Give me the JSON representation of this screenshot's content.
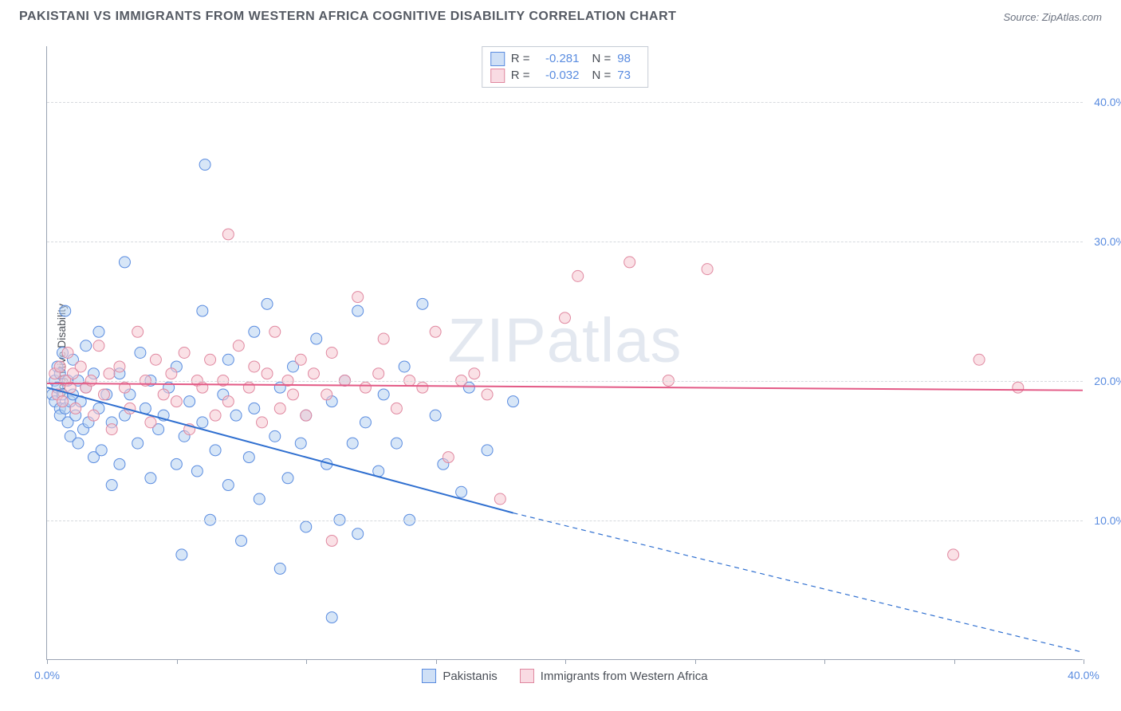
{
  "title": "PAKISTANI VS IMMIGRANTS FROM WESTERN AFRICA COGNITIVE DISABILITY CORRELATION CHART",
  "source_label": "Source: ",
  "source_name": "ZipAtlas.com",
  "watermark": "ZIPatlas",
  "ylabel": "Cognitive Disability",
  "chart": {
    "type": "scatter",
    "xlim": [
      0,
      40
    ],
    "ylim": [
      0,
      44
    ],
    "x_ticks_major": [
      0,
      40
    ],
    "x_ticks_minor": [
      5,
      10,
      15,
      20,
      25,
      30,
      35
    ],
    "y_ticks": [
      10,
      20,
      30,
      40
    ],
    "grid_color": "#d6d9de",
    "axis_color": "#9aa3b2",
    "tick_label_color": "#5a8ce0",
    "series": [
      {
        "name": "Pakistanis",
        "marker_fill": "#b7d2f1",
        "marker_stroke": "#5a8ce0",
        "marker_fill_opacity": 0.55,
        "line_color": "#2f6fd0",
        "line_width": 2,
        "r_value": "-0.281",
        "n_value": "98",
        "swatch_fill": "#cfe0f6",
        "swatch_border": "#5a8ce0",
        "trend": {
          "x1": 0,
          "y1": 19.5,
          "x2_solid": 18,
          "y2_solid": 10.5,
          "x2_dash": 40,
          "y2_dash": 0.5
        },
        "points": [
          [
            0.2,
            19
          ],
          [
            0.3,
            20
          ],
          [
            0.3,
            18.5
          ],
          [
            0.4,
            21
          ],
          [
            0.4,
            19.5
          ],
          [
            0.5,
            18
          ],
          [
            0.5,
            20.5
          ],
          [
            0.5,
            17.5
          ],
          [
            0.6,
            19
          ],
          [
            0.6,
            22
          ],
          [
            0.7,
            25
          ],
          [
            0.7,
            18
          ],
          [
            0.8,
            17
          ],
          [
            0.8,
            20
          ],
          [
            0.9,
            18.5
          ],
          [
            0.9,
            16
          ],
          [
            1.0,
            19
          ],
          [
            1.0,
            21.5
          ],
          [
            1.1,
            17.5
          ],
          [
            1.2,
            15.5
          ],
          [
            1.2,
            20
          ],
          [
            1.3,
            18.5
          ],
          [
            1.4,
            16.5
          ],
          [
            1.5,
            19.5
          ],
          [
            1.5,
            22.5
          ],
          [
            1.6,
            17
          ],
          [
            1.8,
            14.5
          ],
          [
            1.8,
            20.5
          ],
          [
            2.0,
            18
          ],
          [
            2.0,
            23.5
          ],
          [
            2.1,
            15
          ],
          [
            2.3,
            19
          ],
          [
            2.5,
            17
          ],
          [
            2.5,
            12.5
          ],
          [
            2.8,
            20.5
          ],
          [
            2.8,
            14
          ],
          [
            3.0,
            28.5
          ],
          [
            3.0,
            17.5
          ],
          [
            3.2,
            19
          ],
          [
            3.5,
            15.5
          ],
          [
            3.6,
            22
          ],
          [
            3.8,
            18
          ],
          [
            4.0,
            13
          ],
          [
            4.0,
            20
          ],
          [
            4.3,
            16.5
          ],
          [
            4.5,
            17.5
          ],
          [
            4.7,
            19.5
          ],
          [
            5.0,
            14
          ],
          [
            5.0,
            21
          ],
          [
            5.2,
            7.5
          ],
          [
            5.3,
            16
          ],
          [
            5.5,
            18.5
          ],
          [
            5.8,
            13.5
          ],
          [
            6.0,
            25
          ],
          [
            6.0,
            17
          ],
          [
            6.1,
            35.5
          ],
          [
            6.3,
            10
          ],
          [
            6.5,
            15
          ],
          [
            6.8,
            19
          ],
          [
            7.0,
            12.5
          ],
          [
            7.0,
            21.5
          ],
          [
            7.3,
            17.5
          ],
          [
            7.5,
            8.5
          ],
          [
            7.8,
            14.5
          ],
          [
            8.0,
            23.5
          ],
          [
            8.0,
            18
          ],
          [
            8.2,
            11.5
          ],
          [
            8.5,
            25.5
          ],
          [
            8.8,
            16
          ],
          [
            9.0,
            6.5
          ],
          [
            9.0,
            19.5
          ],
          [
            9.3,
            13
          ],
          [
            9.5,
            21
          ],
          [
            9.8,
            15.5
          ],
          [
            10.0,
            17.5
          ],
          [
            10.0,
            9.5
          ],
          [
            10.4,
            23
          ],
          [
            10.8,
            14
          ],
          [
            11.0,
            3
          ],
          [
            11.0,
            18.5
          ],
          [
            11.3,
            10
          ],
          [
            11.5,
            20
          ],
          [
            11.8,
            15.5
          ],
          [
            12.0,
            9
          ],
          [
            12.0,
            25
          ],
          [
            12.3,
            17
          ],
          [
            12.8,
            13.5
          ],
          [
            13.0,
            19
          ],
          [
            13.5,
            15.5
          ],
          [
            13.8,
            21
          ],
          [
            14.0,
            10
          ],
          [
            14.5,
            25.5
          ],
          [
            15.0,
            17.5
          ],
          [
            15.3,
            14
          ],
          [
            16.0,
            12
          ],
          [
            16.3,
            19.5
          ],
          [
            17.0,
            15
          ],
          [
            18.0,
            18.5
          ]
        ]
      },
      {
        "name": "Immigrants from Western Africa",
        "marker_fill": "#f6c8d2",
        "marker_stroke": "#e088a0",
        "marker_fill_opacity": 0.55,
        "line_color": "#e35a86",
        "line_width": 2,
        "r_value": "-0.032",
        "n_value": "73",
        "swatch_fill": "#f9dbe3",
        "swatch_border": "#e088a0",
        "trend": {
          "x1": 0,
          "y1": 19.8,
          "x2_solid": 40,
          "y2_solid": 19.3,
          "x2_dash": 40,
          "y2_dash": 19.3
        },
        "points": [
          [
            0.3,
            20.5
          ],
          [
            0.4,
            19
          ],
          [
            0.5,
            21
          ],
          [
            0.6,
            18.5
          ],
          [
            0.7,
            20
          ],
          [
            0.8,
            22
          ],
          [
            0.9,
            19.5
          ],
          [
            1.0,
            20.5
          ],
          [
            1.1,
            18
          ],
          [
            1.3,
            21
          ],
          [
            1.5,
            19.5
          ],
          [
            1.7,
            20
          ],
          [
            1.8,
            17.5
          ],
          [
            2.0,
            22.5
          ],
          [
            2.2,
            19
          ],
          [
            2.4,
            20.5
          ],
          [
            2.5,
            16.5
          ],
          [
            2.8,
            21
          ],
          [
            3.0,
            19.5
          ],
          [
            3.2,
            18
          ],
          [
            3.5,
            23.5
          ],
          [
            3.8,
            20
          ],
          [
            4.0,
            17
          ],
          [
            4.2,
            21.5
          ],
          [
            4.5,
            19
          ],
          [
            4.8,
            20.5
          ],
          [
            5.0,
            18.5
          ],
          [
            5.3,
            22
          ],
          [
            5.5,
            16.5
          ],
          [
            5.8,
            20
          ],
          [
            6.0,
            19.5
          ],
          [
            6.3,
            21.5
          ],
          [
            6.5,
            17.5
          ],
          [
            6.8,
            20
          ],
          [
            7.0,
            30.5
          ],
          [
            7.0,
            18.5
          ],
          [
            7.4,
            22.5
          ],
          [
            7.8,
            19.5
          ],
          [
            8.0,
            21
          ],
          [
            8.3,
            17
          ],
          [
            8.5,
            20.5
          ],
          [
            8.8,
            23.5
          ],
          [
            9.0,
            18
          ],
          [
            9.3,
            20
          ],
          [
            9.5,
            19
          ],
          [
            9.8,
            21.5
          ],
          [
            10.0,
            17.5
          ],
          [
            10.3,
            20.5
          ],
          [
            10.8,
            19
          ],
          [
            11.0,
            22
          ],
          [
            11.0,
            8.5
          ],
          [
            11.5,
            20
          ],
          [
            12.0,
            26
          ],
          [
            12.3,
            19.5
          ],
          [
            12.8,
            20.5
          ],
          [
            13.0,
            23
          ],
          [
            13.5,
            18
          ],
          [
            14.0,
            20
          ],
          [
            14.5,
            19.5
          ],
          [
            15.0,
            23.5
          ],
          [
            15.5,
            14.5
          ],
          [
            16.0,
            20
          ],
          [
            16.5,
            20.5
          ],
          [
            17.0,
            19
          ],
          [
            17.5,
            11.5
          ],
          [
            20.0,
            24.5
          ],
          [
            20.5,
            27.5
          ],
          [
            22.5,
            28.5
          ],
          [
            24.0,
            20
          ],
          [
            25.5,
            28
          ],
          [
            35.0,
            7.5
          ],
          [
            36.0,
            21.5
          ],
          [
            37.5,
            19.5
          ]
        ]
      }
    ],
    "bottom_legend": [
      {
        "label": "Pakistanis",
        "fill": "#cfe0f6",
        "border": "#5a8ce0"
      },
      {
        "label": "Immigrants from Western Africa",
        "fill": "#f9dbe3",
        "border": "#e088a0"
      }
    ]
  }
}
